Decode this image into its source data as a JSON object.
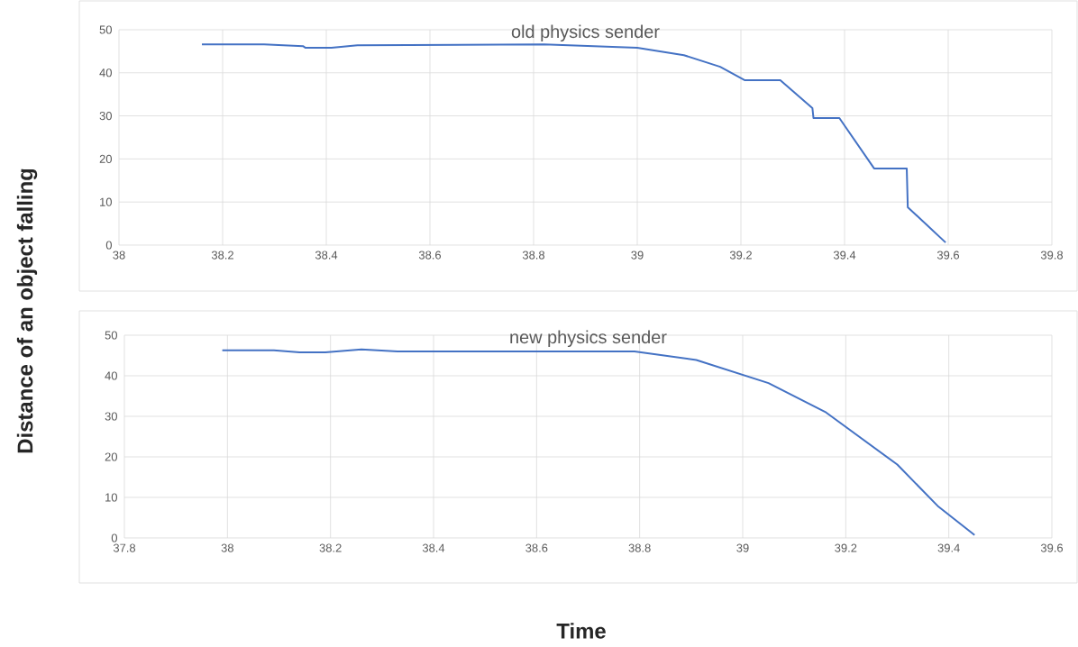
{
  "chart_data": [
    {
      "type": "line",
      "title": "old physics sender",
      "ylabel": "Distance of an object falling",
      "x": [
        38.16,
        38.28,
        38.355,
        38.36,
        38.41,
        38.46,
        38.82,
        39.0,
        39.09,
        39.16,
        39.207,
        39.276,
        39.338,
        39.34,
        39.39,
        39.457,
        39.52,
        39.522,
        39.595
      ],
      "values": [
        46.6,
        46.6,
        46.2,
        45.8,
        45.8,
        46.4,
        46.6,
        45.8,
        44.1,
        41.4,
        38.3,
        38.3,
        31.8,
        29.5,
        29.5,
        17.8,
        17.8,
        8.8,
        0.6
      ],
      "color": "#4472c4",
      "xlim": [
        38,
        39.8
      ],
      "ylim": [
        0,
        50
      ],
      "xticks": [
        38,
        38.2,
        38.4,
        38.6,
        38.8,
        39,
        39.2,
        39.4,
        39.6,
        39.8
      ],
      "yticks": [
        0,
        10,
        20,
        30,
        40,
        50
      ],
      "grid": true
    },
    {
      "type": "line",
      "title": "new physics sender",
      "xlabel": "Time",
      "x": [
        37.99,
        38.09,
        38.14,
        38.19,
        38.26,
        38.33,
        38.79,
        38.91,
        39.05,
        39.16,
        39.3,
        39.38,
        39.45
      ],
      "values": [
        46.3,
        46.3,
        45.8,
        45.8,
        46.5,
        46.0,
        46.0,
        43.9,
        38.2,
        31.1,
        18.1,
        7.7,
        0.7
      ],
      "color": "#4472c4",
      "xlim": [
        37.8,
        39.6
      ],
      "ylim": [
        0,
        50
      ],
      "xticks": [
        37.8,
        38,
        38.2,
        38.4,
        38.6,
        38.8,
        39,
        39.2,
        39.4,
        39.6
      ],
      "yticks": [
        0,
        10,
        20,
        30,
        40,
        50
      ],
      "grid": true
    }
  ]
}
